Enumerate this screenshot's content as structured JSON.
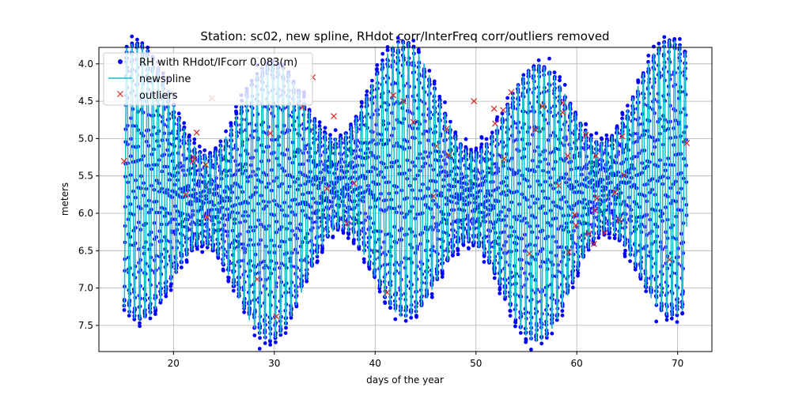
{
  "chart_data": {
    "type": "line",
    "title": "Station: sc02, new spline, RHdot corr/InterFreq corr/outliers removed",
    "xlabel": "days of the year",
    "ylabel": "meters",
    "xlim": [
      12.6,
      73.4
    ],
    "ylim": [
      7.85,
      3.78
    ],
    "y_inverted": true,
    "grid": true,
    "legend_position": "top-left",
    "x_ticks": [
      "20",
      "30",
      "40",
      "50",
      "60",
      "70"
    ],
    "y_ticks": [
      "4.0",
      "4.5",
      "5.0",
      "5.5",
      "6.0",
      "6.5",
      "7.0",
      "7.5"
    ],
    "legend": [
      {
        "label": "RH with RHdot/IFcorr 0.083(m)",
        "color": "#0000ff",
        "marker": "dot"
      },
      {
        "label": "newspline",
        "color": "#17becf",
        "marker": "line"
      },
      {
        "label": "outliers",
        "color": "#d62728",
        "marker": "x"
      }
    ],
    "spline_model": {
      "x_range": [
        15.1,
        70.9
      ],
      "tidal_period_days": 0.5175,
      "mean_level_approx": 5.7,
      "amplitude_range": [
        0.6,
        1.85
      ],
      "note": "semi-diurnal tide with spring/neap modulation; RH observations scattered about spline"
    },
    "outliers": [
      {
        "x": 15.1,
        "y": 5.3
      },
      {
        "x": 21.2,
        "y": 5.75
      },
      {
        "x": 21.9,
        "y": 5.3
      },
      {
        "x": 22.0,
        "y": 5.25
      },
      {
        "x": 22.3,
        "y": 4.92
      },
      {
        "x": 23.2,
        "y": 5.35
      },
      {
        "x": 23.3,
        "y": 6.05
      },
      {
        "x": 23.8,
        "y": 4.46
      },
      {
        "x": 28.3,
        "y": 6.88
      },
      {
        "x": 29.6,
        "y": 4.93
      },
      {
        "x": 30.2,
        "y": 7.38
      },
      {
        "x": 32.8,
        "y": 4.58
      },
      {
        "x": 33.8,
        "y": 4.18
      },
      {
        "x": 35.2,
        "y": 5.67
      },
      {
        "x": 35.9,
        "y": 4.7
      },
      {
        "x": 37.2,
        "y": 6.14
      },
      {
        "x": 37.9,
        "y": 5.6
      },
      {
        "x": 41.2,
        "y": 7.06
      },
      {
        "x": 41.8,
        "y": 4.42
      },
      {
        "x": 42.8,
        "y": 4.5
      },
      {
        "x": 43.8,
        "y": 4.78
      },
      {
        "x": 45.8,
        "y": 5.77
      },
      {
        "x": 46.1,
        "y": 5.1
      },
      {
        "x": 47.1,
        "y": 4.87
      },
      {
        "x": 47.3,
        "y": 5.22
      },
      {
        "x": 49.8,
        "y": 4.5
      },
      {
        "x": 51.8,
        "y": 4.6
      },
      {
        "x": 51.9,
        "y": 4.8
      },
      {
        "x": 52.7,
        "y": 4.62
      },
      {
        "x": 52.8,
        "y": 5.27
      },
      {
        "x": 53.5,
        "y": 4.38
      },
      {
        "x": 55.3,
        "y": 6.54
      },
      {
        "x": 55.9,
        "y": 4.88
      },
      {
        "x": 56.6,
        "y": 4.57
      },
      {
        "x": 58.2,
        "y": 5.63
      },
      {
        "x": 58.6,
        "y": 4.52
      },
      {
        "x": 58.6,
        "y": 4.65
      },
      {
        "x": 59.1,
        "y": 5.23
      },
      {
        "x": 59.2,
        "y": 6.52
      },
      {
        "x": 59.8,
        "y": 6.02
      },
      {
        "x": 59.9,
        "y": 6.16
      },
      {
        "x": 60.9,
        "y": 4.95
      },
      {
        "x": 61.2,
        "y": 6.27
      },
      {
        "x": 61.7,
        "y": 6.41
      },
      {
        "x": 61.8,
        "y": 5.96
      },
      {
        "x": 61.9,
        "y": 5.23
      },
      {
        "x": 62.0,
        "y": 5.8
      },
      {
        "x": 62.8,
        "y": 6.26
      },
      {
        "x": 63.8,
        "y": 5.72
      },
      {
        "x": 64.2,
        "y": 6.09
      },
      {
        "x": 64.5,
        "y": 4.97
      },
      {
        "x": 64.7,
        "y": 5.49
      },
      {
        "x": 69.2,
        "y": 6.62
      },
      {
        "x": 70.9,
        "y": 5.06
      }
    ]
  }
}
